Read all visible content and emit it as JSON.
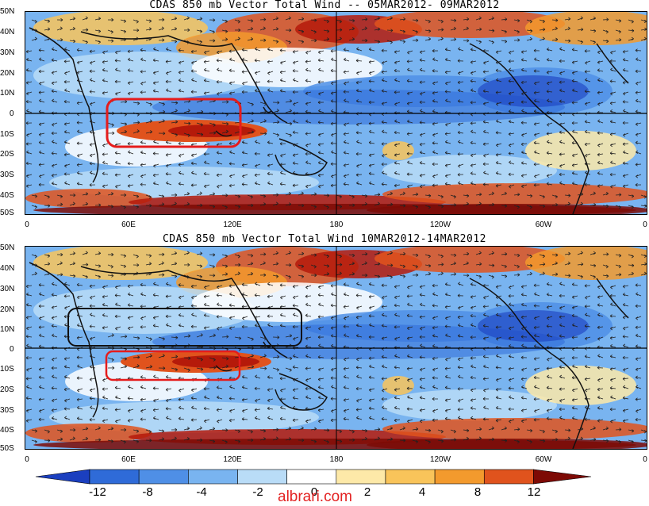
{
  "panels": [
    {
      "title": "CDAS 850 mb Vector Total Wind -- 05MAR2012- 09MAR2012"
    },
    {
      "title": "CDAS 850 mb Vector Total Wind 10MAR2012-14MAR2012"
    }
  ],
  "lat_labels": [
    "50N",
    "40N",
    "30N",
    "20N",
    "10N",
    "0",
    "10S",
    "20S",
    "30S",
    "40S",
    "50S"
  ],
  "lon_labels": [
    "0",
    "60E",
    "120E",
    "180",
    "120W",
    "60W",
    "0"
  ],
  "colorbar": {
    "labels": [
      "-12",
      "-8",
      "-4",
      "-2",
      "0",
      "2",
      "4",
      "8",
      "12"
    ],
    "colors": [
      "#1b3fbf",
      "#2f6bd8",
      "#4f8fe6",
      "#79b4f0",
      "#b9dcf7",
      "#ffffff",
      "#fde9a8",
      "#f9c45a",
      "#f39a2d",
      "#e0531d",
      "#b51a0a",
      "#7d0a05"
    ]
  },
  "highlight_colors": {
    "red_box": "#e51c1c",
    "black_box": "#111111"
  },
  "watermark": "albrari.com"
}
